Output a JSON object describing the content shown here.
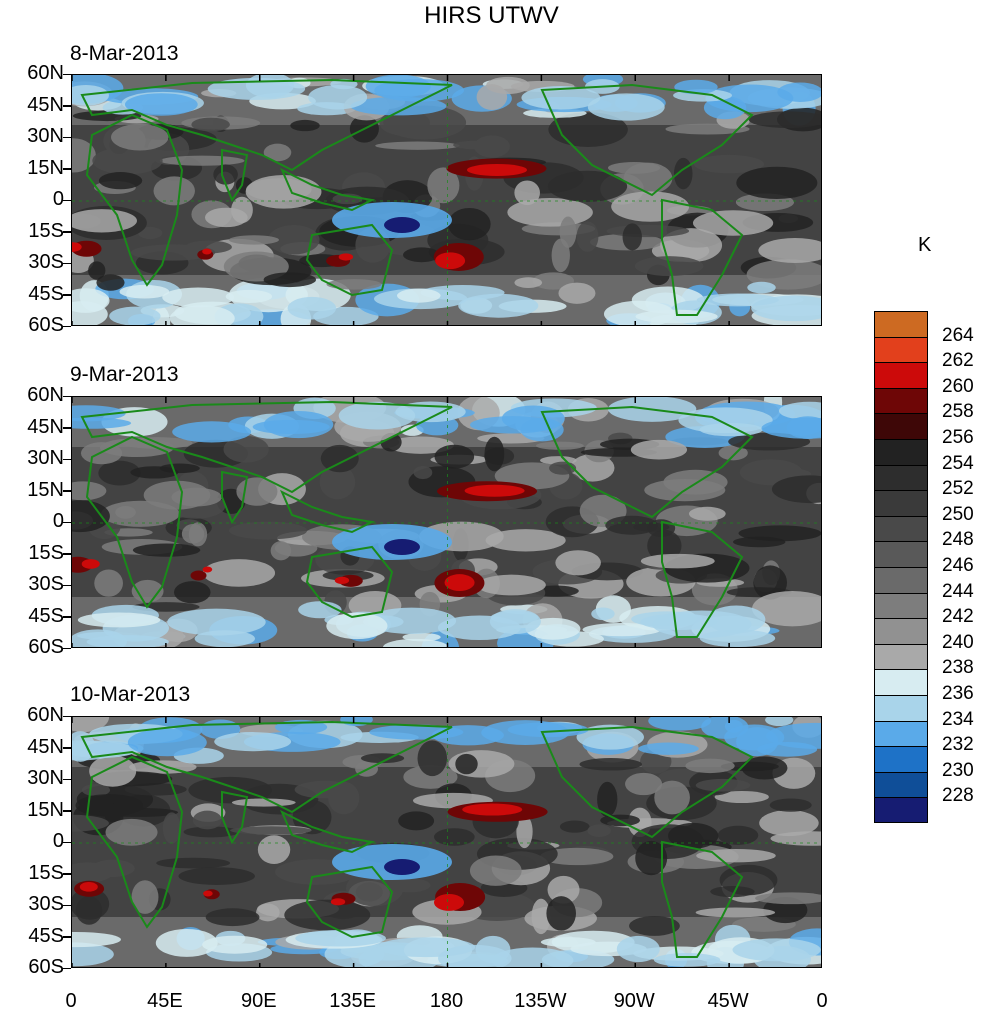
{
  "title": "HIRS UTWV",
  "panels": [
    {
      "date": "8-Mar-2013"
    },
    {
      "date": "9-Mar-2013"
    },
    {
      "date": "10-Mar-2013"
    }
  ],
  "lat_labels": [
    "60N",
    "45N",
    "30N",
    "15N",
    "0",
    "15S",
    "30S",
    "45S",
    "60S"
  ],
  "lon_labels": [
    "0",
    "45E",
    "90E",
    "135E",
    "180",
    "135W",
    "90W",
    "45W",
    "0"
  ],
  "colorbar": {
    "unit": "K",
    "levels": [
      "264",
      "262",
      "260",
      "258",
      "256",
      "254",
      "252",
      "250",
      "248",
      "246",
      "244",
      "242",
      "240",
      "238",
      "236",
      "234",
      "232",
      "230",
      "228"
    ],
    "colors": [
      "#cd6a22",
      "#e2401c",
      "#cc0a0a",
      "#6e0606",
      "#3e0707",
      "#222222",
      "#2d2d2d",
      "#3a3a3a",
      "#494949",
      "#595959",
      "#6a6a6a",
      "#7d7d7d",
      "#919191",
      "#a9a9a9",
      "#d7ecf1",
      "#a9d4ea",
      "#5aaae9",
      "#1e72c7",
      "#0f4e98",
      "#161c72"
    ]
  },
  "colors": {
    "coastline": "#1a8a1a",
    "frame": "#000000"
  }
}
